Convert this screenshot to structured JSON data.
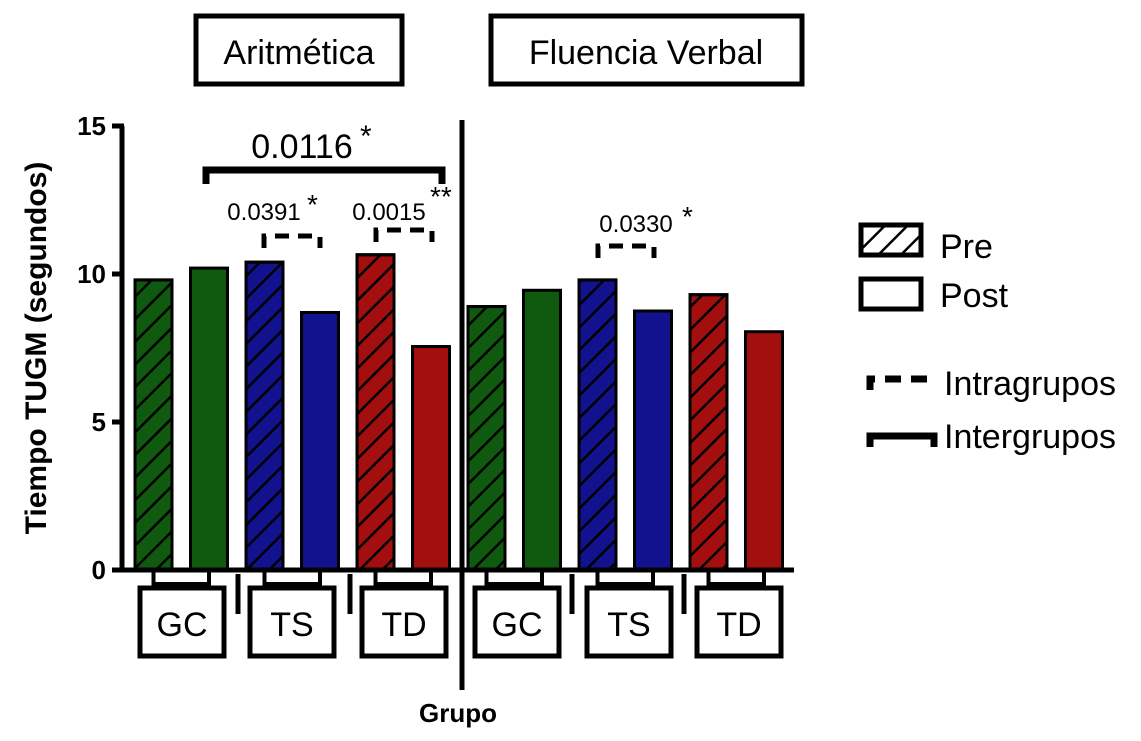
{
  "chart_data": {
    "type": "bar",
    "ylabel": "Tiempo TUGM (segundos)",
    "xlabel": "Grupo",
    "ylim": [
      0,
      15
    ],
    "yticks": [
      "0",
      "5",
      "10",
      "15"
    ],
    "panels": [
      {
        "title": "Aritmética",
        "groups": [
          {
            "label": "GC",
            "color": "#0f5a0f",
            "pre": 9.8,
            "post": 10.2
          },
          {
            "label": "TS",
            "color": "#12128f",
            "pre": 10.4,
            "post": 8.7
          },
          {
            "label": "TD",
            "color": "#a30f0f",
            "pre": 10.65,
            "post": 7.55
          }
        ]
      },
      {
        "title": "Fluencia Verbal",
        "groups": [
          {
            "label": "GC",
            "color": "#0f5a0f",
            "pre": 8.9,
            "post": 9.45
          },
          {
            "label": "TS",
            "color": "#12128f",
            "pre": 9.8,
            "post": 8.75
          },
          {
            "label": "TD",
            "color": "#a30f0f",
            "pre": 9.3,
            "post": 8.05
          }
        ]
      }
    ],
    "annotations": {
      "inter": {
        "p": "0.0116",
        "stars": "*"
      },
      "intra_aritmetica_ts": {
        "p": "0.0391",
        "stars": "*"
      },
      "intra_aritmetica_td": {
        "p": "0.0015",
        "stars": "**"
      },
      "intra_fluencia_ts": {
        "p": "0.0330",
        "stars": "*"
      }
    },
    "legend": {
      "pre": "Pre",
      "post": "Post",
      "intra": "Intragrupos",
      "inter": "Intergrupos"
    },
    "grid": false,
    "legend_position": "right"
  }
}
